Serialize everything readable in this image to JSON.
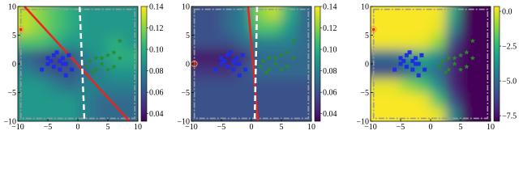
{
  "chart_data": [
    {
      "type": "heatmap",
      "colormap": "viridis",
      "xlim": [
        -10,
        10
      ],
      "ylim": [
        -10,
        10
      ],
      "xticks": [
        {
          "value": -10,
          "label": "−10"
        },
        {
          "value": -5,
          "label": "−5"
        },
        0,
        5,
        10
      ],
      "yticks": [
        {
          "value": -10,
          "label": "−10"
        },
        {
          "value": -5,
          "label": "−5"
        },
        0,
        5,
        10
      ],
      "clim": [
        0.033,
        0.14
      ],
      "cticks": [
        {
          "value": 0.04,
          "label": "0.04"
        },
        {
          "value": 0.06,
          "label": "0.06"
        },
        {
          "value": 0.08,
          "label": "0.08"
        },
        {
          "value": 0.1,
          "label": "0.10"
        },
        {
          "value": 0.12,
          "label": "0.12"
        },
        {
          "value": 0.14,
          "label": "0.14"
        }
      ],
      "region": [
        -9.5,
        9.5
      ],
      "z": [
        [
          0.13,
          0.12,
          0.11,
          0.1,
          0.09,
          0.09,
          0.09,
          0.09
        ],
        [
          0.13,
          0.12,
          0.11,
          0.1,
          0.09,
          0.09,
          0.09,
          0.09
        ],
        [
          0.11,
          0.11,
          0.1,
          0.09,
          0.09,
          0.09,
          0.1,
          0.09
        ],
        [
          0.07,
          0.06,
          0.05,
          0.06,
          0.08,
          0.09,
          0.1,
          0.1
        ],
        [
          0.08,
          0.07,
          0.06,
          0.06,
          0.07,
          0.08,
          0.09,
          0.09
        ],
        [
          0.09,
          0.09,
          0.08,
          0.07,
          0.08,
          0.08,
          0.08,
          0.08
        ],
        [
          0.09,
          0.09,
          0.09,
          0.09,
          0.08,
          0.07,
          0.07,
          0.07
        ],
        [
          0.09,
          0.09,
          0.09,
          0.09,
          0.08,
          0.07,
          0.07,
          0.07
        ]
      ],
      "lines": [
        {
          "color": "#e8251e",
          "style": "solid",
          "x": [
            -8.9,
            8.6
          ],
          "y": [
            10,
            -10
          ]
        },
        {
          "color": "#ffffff",
          "style": "dashed",
          "x": [
            0.3,
            1.1
          ],
          "y": [
            10,
            -10
          ]
        }
      ],
      "points": [
        {
          "color": "#1f2fe0",
          "marker": "square",
          "x": [
            -5,
            -4,
            -3.5,
            -3,
            -2.5,
            -2,
            -4.5,
            -6,
            -3,
            -2,
            -1,
            -2.5,
            -5,
            -1.5,
            -4
          ],
          "y": [
            1,
            1.5,
            2,
            0.5,
            1,
            0,
            0.5,
            -1,
            -1,
            -2,
            -1,
            0,
            0,
            1.5,
            -0.5
          ]
        },
        {
          "color": "#2a8a2a",
          "marker": "star",
          "x": [
            2,
            3,
            4,
            5,
            6,
            7,
            3,
            5,
            1.5,
            4,
            2.5,
            6,
            7
          ],
          "y": [
            0.5,
            1,
            0,
            1.5,
            2,
            4,
            -1,
            -1,
            -0.5,
            1,
            -1.5,
            -0.5,
            1
          ]
        },
        {
          "color": "#e8251e",
          "marker": "ring",
          "x": [
            -9.5
          ],
          "y": [
            6
          ]
        }
      ]
    },
    {
      "type": "heatmap",
      "colormap": "viridis",
      "xlim": [
        -10,
        10
      ],
      "ylim": [
        -10,
        10
      ],
      "xticks": [
        {
          "value": -10,
          "label": "−10"
        },
        {
          "value": -5,
          "label": "−5"
        },
        0,
        5,
        10
      ],
      "yticks": [
        {
          "value": -10,
          "label": "−10"
        },
        {
          "value": -5,
          "label": "−5"
        },
        0,
        5,
        10
      ],
      "clim": [
        0.033,
        0.14
      ],
      "cticks": [
        {
          "value": 0.04,
          "label": "0.04"
        },
        {
          "value": 0.06,
          "label": "0.06"
        },
        {
          "value": 0.08,
          "label": "0.08"
        },
        {
          "value": 0.1,
          "label": "0.10"
        },
        {
          "value": 0.12,
          "label": "0.12"
        },
        {
          "value": 0.14,
          "label": "0.14"
        }
      ],
      "region": [
        -9.5,
        9.5
      ],
      "z": [
        [
          0.06,
          0.06,
          0.07,
          0.08,
          0.12,
          0.13,
          0.1,
          0.07
        ],
        [
          0.06,
          0.06,
          0.07,
          0.08,
          0.11,
          0.11,
          0.09,
          0.07
        ],
        [
          0.06,
          0.06,
          0.06,
          0.07,
          0.08,
          0.08,
          0.08,
          0.07
        ],
        [
          0.04,
          0.04,
          0.04,
          0.05,
          0.07,
          0.07,
          0.07,
          0.07
        ],
        [
          0.05,
          0.05,
          0.05,
          0.06,
          0.07,
          0.07,
          0.07,
          0.07
        ],
        [
          0.06,
          0.06,
          0.06,
          0.06,
          0.06,
          0.06,
          0.06,
          0.06
        ],
        [
          0.06,
          0.06,
          0.06,
          0.06,
          0.06,
          0.06,
          0.06,
          0.06
        ],
        [
          0.06,
          0.06,
          0.06,
          0.06,
          0.06,
          0.06,
          0.06,
          0.06
        ]
      ],
      "lines": [
        {
          "color": "#e8251e",
          "style": "solid",
          "x": [
            -0.54,
            1.08
          ],
          "y": [
            10,
            -10
          ]
        },
        {
          "color": "#ffffff",
          "style": "dashed",
          "x": [
            0.95,
            0.54
          ],
          "y": [
            10,
            -10
          ]
        }
      ],
      "points": [
        {
          "color": "#1f2fe0",
          "marker": "square",
          "x": [
            -5,
            -4,
            -3.5,
            -3,
            -2.5,
            -2,
            -4.5,
            -6,
            -3,
            -2,
            -1,
            -2.5,
            -5,
            -1.5,
            -4
          ],
          "y": [
            1,
            1.5,
            2,
            0.5,
            1,
            0,
            0.5,
            -1,
            -1,
            -2,
            -1,
            0,
            0,
            1.5,
            -0.5
          ]
        },
        {
          "color": "#2a8a2a",
          "marker": "star",
          "x": [
            2,
            3,
            4,
            5,
            6,
            7,
            3,
            5,
            1.5,
            4,
            2.5,
            6,
            7
          ],
          "y": [
            0.5,
            1,
            0,
            1.5,
            2,
            4,
            -1,
            -1,
            -0.5,
            1,
            -1.5,
            -0.5,
            1
          ]
        },
        {
          "color": "#e8251e",
          "marker": "ring",
          "x": [
            -9.5
          ],
          "y": [
            0
          ]
        }
      ]
    },
    {
      "type": "heatmap",
      "colormap": "viridis",
      "xlim": [
        -10,
        10
      ],
      "ylim": [
        -10,
        10
      ],
      "xticks": [
        {
          "value": -10,
          "label": "−10"
        },
        {
          "value": -5,
          "label": "−5"
        },
        0,
        5,
        10
      ],
      "yticks": [
        {
          "value": -10,
          "label": "−10"
        },
        {
          "value": -5,
          "label": "−5"
        },
        0,
        5,
        10
      ],
      "clim": [
        -7.9,
        0.35
      ],
      "cticks": [
        {
          "value": -7.5,
          "label": "−7.5"
        },
        {
          "value": -5,
          "label": "−5.0"
        },
        {
          "value": -2.5,
          "label": "−2.5"
        },
        {
          "value": 0,
          "label": "0.0"
        }
      ],
      "region": [
        -9.5,
        9.5
      ],
      "z": [
        [
          0.3,
          0.3,
          0.3,
          0.3,
          0.2,
          -3,
          -7.8,
          -7.8
        ],
        [
          0.3,
          0.3,
          0.3,
          0.3,
          0,
          -4,
          -7.8,
          -7.8
        ],
        [
          0.2,
          0.2,
          0.2,
          0.1,
          -1,
          -6,
          -7.8,
          -7.8
        ],
        [
          -5,
          -5,
          -4,
          -3,
          -4,
          -7,
          -7.8,
          -7.8
        ],
        [
          -6,
          -6,
          -5,
          -4,
          -5,
          -7,
          -7.8,
          -7.8
        ],
        [
          0,
          0,
          -1,
          -2,
          -4,
          -7,
          -7.8,
          -7.8
        ],
        [
          0.3,
          0.3,
          0.3,
          0.1,
          -2,
          -6,
          -7.8,
          -7.8
        ],
        [
          0.3,
          0.3,
          0.3,
          0.3,
          0,
          -4,
          -7.8,
          -7.8
        ]
      ],
      "lines": [],
      "points": [
        {
          "color": "#1f2fe0",
          "marker": "square",
          "x": [
            -5,
            -4,
            -3.5,
            -3,
            -2.5,
            -2,
            -4.5,
            -6,
            -3,
            -2,
            -1,
            -2.5,
            -5,
            -1.5,
            -4
          ],
          "y": [
            1,
            1.5,
            2,
            0.5,
            1,
            0,
            0.5,
            -1,
            -1,
            -2,
            -1,
            0,
            0,
            1.5,
            -0.5
          ]
        },
        {
          "color": "#2a8a2a",
          "marker": "star",
          "x": [
            2,
            3,
            4,
            5,
            6,
            7,
            3,
            5,
            1.5,
            4,
            2.5,
            6,
            7
          ],
          "y": [
            0.5,
            1,
            0,
            1.5,
            2,
            4,
            -1,
            -1,
            -0.5,
            1,
            -1.5,
            -0.5,
            1
          ]
        },
        {
          "color": "#e8251e",
          "marker": "ring",
          "x": [
            -9.5
          ],
          "y": [
            6
          ]
        }
      ]
    }
  ]
}
